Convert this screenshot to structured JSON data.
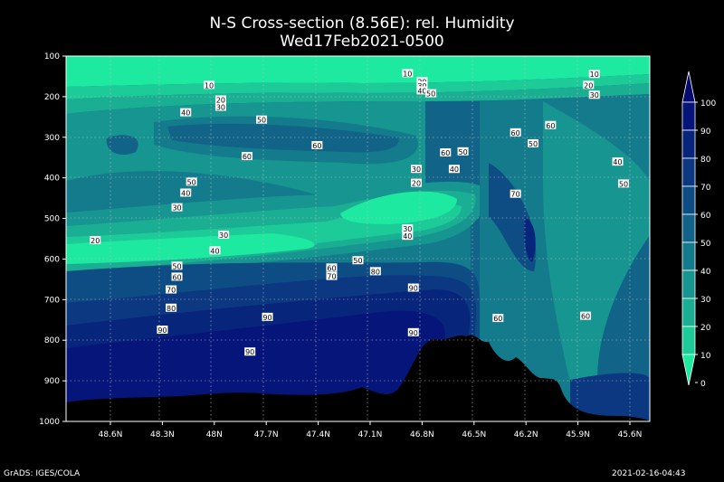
{
  "title": "N-S Cross-section (8.56E): rel. Humidity",
  "subtitle": "Wed17Feb2021-0500",
  "footer_left": "GrADS: IGES/COLA",
  "footer_right": "2021-02-16-04:43",
  "chart_data": {
    "type": "contour",
    "y_ticks": [
      "100",
      "200",
      "300",
      "400",
      "500",
      "600",
      "700",
      "800",
      "900",
      "1000"
    ],
    "x_ticks": [
      "48.6N",
      "48.3N",
      "48N",
      "47.7N",
      "47.4N",
      "47.1N",
      "46.8N",
      "46.5N",
      "46.2N",
      "45.9N",
      "45.6N"
    ],
    "colorbar_labels": [
      "0",
      "10",
      "20",
      "30",
      "40",
      "50",
      "60",
      "70",
      "80",
      "90",
      "100"
    ],
    "colorbar_colors": [
      "#1de9a0",
      "#1ccb98",
      "#1aaf93",
      "#179590",
      "#147b8c",
      "#116387",
      "#0e4c84",
      "#0b3880",
      "#08257c",
      "#061579",
      "#040a70"
    ],
    "contour_labels": [
      {
        "t": "10",
        "x": 0.245,
        "y": 0.08
      },
      {
        "t": "20",
        "x": 0.265,
        "y": 0.12
      },
      {
        "t": "30",
        "x": 0.265,
        "y": 0.14
      },
      {
        "t": "40",
        "x": 0.205,
        "y": 0.155
      },
      {
        "t": "50",
        "x": 0.335,
        "y": 0.175
      },
      {
        "t": "60",
        "x": 0.43,
        "y": 0.245
      },
      {
        "t": "60",
        "x": 0.31,
        "y": 0.275
      },
      {
        "t": "50",
        "x": 0.215,
        "y": 0.345
      },
      {
        "t": "40",
        "x": 0.205,
        "y": 0.375
      },
      {
        "t": "30",
        "x": 0.19,
        "y": 0.415
      },
      {
        "t": "20",
        "x": 0.05,
        "y": 0.505
      },
      {
        "t": "30",
        "x": 0.27,
        "y": 0.49
      },
      {
        "t": "40",
        "x": 0.255,
        "y": 0.533
      },
      {
        "t": "50",
        "x": 0.19,
        "y": 0.575
      },
      {
        "t": "60",
        "x": 0.19,
        "y": 0.605
      },
      {
        "t": "70",
        "x": 0.18,
        "y": 0.64
      },
      {
        "t": "80",
        "x": 0.18,
        "y": 0.69
      },
      {
        "t": "90",
        "x": 0.165,
        "y": 0.75
      },
      {
        "t": "90",
        "x": 0.345,
        "y": 0.715
      },
      {
        "t": "90",
        "x": 0.315,
        "y": 0.81
      },
      {
        "t": "60",
        "x": 0.455,
        "y": 0.58
      },
      {
        "t": "70",
        "x": 0.455,
        "y": 0.603
      },
      {
        "t": "50",
        "x": 0.5,
        "y": 0.56
      },
      {
        "t": "80",
        "x": 0.53,
        "y": 0.59
      },
      {
        "t": "90",
        "x": 0.595,
        "y": 0.635
      },
      {
        "t": "90",
        "x": 0.595,
        "y": 0.757
      },
      {
        "t": "10",
        "x": 0.585,
        "y": 0.048
      },
      {
        "t": "20",
        "x": 0.61,
        "y": 0.07
      },
      {
        "t": "30",
        "x": 0.61,
        "y": 0.082
      },
      {
        "t": "40",
        "x": 0.61,
        "y": 0.095
      },
      {
        "t": "50",
        "x": 0.625,
        "y": 0.103
      },
      {
        "t": "30",
        "x": 0.6,
        "y": 0.31
      },
      {
        "t": "20",
        "x": 0.6,
        "y": 0.348
      },
      {
        "t": "30",
        "x": 0.585,
        "y": 0.473
      },
      {
        "t": "40",
        "x": 0.585,
        "y": 0.493
      },
      {
        "t": "60",
        "x": 0.65,
        "y": 0.265
      },
      {
        "t": "50",
        "x": 0.68,
        "y": 0.262
      },
      {
        "t": "40",
        "x": 0.665,
        "y": 0.31
      },
      {
        "t": "60",
        "x": 0.77,
        "y": 0.21
      },
      {
        "t": "50",
        "x": 0.8,
        "y": 0.24
      },
      {
        "t": "60",
        "x": 0.83,
        "y": 0.19
      },
      {
        "t": "70",
        "x": 0.77,
        "y": 0.378
      },
      {
        "t": "60",
        "x": 0.74,
        "y": 0.718
      },
      {
        "t": "60",
        "x": 0.89,
        "y": 0.712
      },
      {
        "t": "10",
        "x": 0.905,
        "y": 0.05
      },
      {
        "t": "20",
        "x": 0.895,
        "y": 0.08
      },
      {
        "t": "30",
        "x": 0.905,
        "y": 0.107
      },
      {
        "t": "40",
        "x": 0.945,
        "y": 0.29
      },
      {
        "t": "50",
        "x": 0.955,
        "y": 0.35
      }
    ]
  }
}
